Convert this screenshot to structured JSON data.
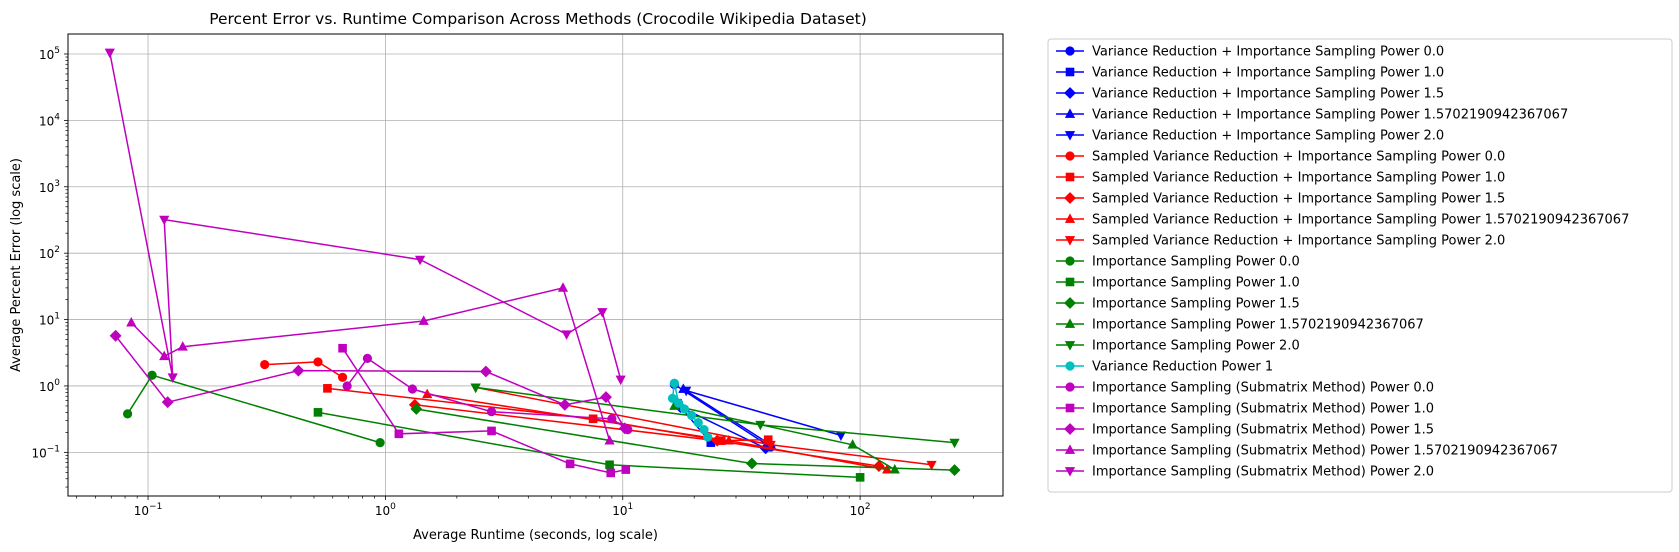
{
  "chart_data": {
    "type": "line",
    "title": "Percent Error vs. Runtime Comparison Across Methods (Crocodile Wikipedia Dataset)",
    "xlabel": "Average Runtime (seconds, log scale)",
    "ylabel": "Average Percent Error (log scale)",
    "xscale": "log",
    "yscale": "log",
    "xlim": [
      0.046,
      400
    ],
    "ylim": [
      0.022,
      200000
    ],
    "grid": true,
    "legend_position": "outside-right",
    "x_ticks": [
      {
        "value": 0.1,
        "base": "10",
        "exp": "−1"
      },
      {
        "value": 1,
        "base": "10",
        "exp": "0"
      },
      {
        "value": 10,
        "base": "10",
        "exp": "1"
      },
      {
        "value": 100,
        "base": "10",
        "exp": "2"
      }
    ],
    "y_ticks": [
      {
        "value": 0.1,
        "base": "10",
        "exp": "−1"
      },
      {
        "value": 1,
        "base": "10",
        "exp": "0"
      },
      {
        "value": 10,
        "base": "10",
        "exp": "1"
      },
      {
        "value": 100,
        "base": "10",
        "exp": "2"
      },
      {
        "value": 1000,
        "base": "10",
        "exp": "3"
      },
      {
        "value": 10000,
        "base": "10",
        "exp": "4"
      },
      {
        "value": 100000,
        "base": "10",
        "exp": "5"
      }
    ],
    "series": [
      {
        "name": "Variance Reduction + Importance Sampling Power 0.0",
        "color": "#0000ff",
        "marker": "circle",
        "x": [
          16.5,
          42
        ],
        "y": [
          1.05,
          0.12
        ]
      },
      {
        "name": "Variance Reduction + Importance Sampling Power 1.0",
        "color": "#0000ff",
        "marker": "square",
        "x": [
          17.0,
          23.5
        ],
        "y": [
          0.55,
          0.14
        ]
      },
      {
        "name": "Variance Reduction + Importance Sampling Power 1.5",
        "color": "#0000ff",
        "marker": "diamond",
        "x": [
          17.5,
          40
        ],
        "y": [
          0.48,
          0.115
        ]
      },
      {
        "name": "Variance Reduction + Importance Sampling Power 1.5702190942367067",
        "color": "#0000ff",
        "marker": "triangle-up",
        "x": [
          18.0,
          42
        ],
        "y": [
          0.9,
          0.13
        ]
      },
      {
        "name": "Variance Reduction + Importance Sampling Power 2.0",
        "color": "#0000ff",
        "marker": "triangle-down",
        "x": [
          18.5,
          83
        ],
        "y": [
          0.85,
          0.18
        ]
      },
      {
        "name": "Sampled Variance Reduction + Importance Sampling Power 0.0",
        "color": "#ff0000",
        "marker": "circle",
        "x": [
          0.31,
          0.52,
          0.66
        ],
        "y": [
          2.1,
          2.3,
          1.35
        ]
      },
      {
        "name": "Sampled Variance Reduction + Importance Sampling Power 1.0",
        "color": "#ff0000",
        "marker": "square",
        "x": [
          0.57,
          7.5,
          26,
          41
        ],
        "y": [
          0.92,
          0.32,
          0.15,
          0.155
        ]
      },
      {
        "name": "Sampled Variance Reduction + Importance Sampling Power 1.5",
        "color": "#ff0000",
        "marker": "diamond",
        "x": [
          1.33,
          25,
          120
        ],
        "y": [
          0.52,
          0.15,
          0.062
        ]
      },
      {
        "name": "Sampled Variance Reduction + Importance Sampling Power 1.5702190942367067",
        "color": "#ff0000",
        "marker": "triangle-up",
        "x": [
          1.5,
          28,
          130
        ],
        "y": [
          0.75,
          0.15,
          0.055
        ]
      },
      {
        "name": "Sampled Variance Reduction + Importance Sampling Power 2.0",
        "color": "#ff0000",
        "marker": "triangle-down",
        "x": [
          2.4,
          42,
          200
        ],
        "y": [
          0.95,
          0.13,
          0.065
        ]
      },
      {
        "name": "Importance Sampling Power 0.0",
        "color": "#008000",
        "marker": "circle",
        "x": [
          0.082,
          0.104,
          0.95
        ],
        "y": [
          0.38,
          1.45,
          0.14
        ]
      },
      {
        "name": "Importance Sampling Power 1.0",
        "color": "#008000",
        "marker": "square",
        "x": [
          0.52,
          8.8,
          100
        ],
        "y": [
          0.4,
          0.065,
          0.042
        ]
      },
      {
        "name": "Importance Sampling Power 1.5",
        "color": "#008000",
        "marker": "diamond",
        "x": [
          1.35,
          35,
          250
        ],
        "y": [
          0.45,
          0.068,
          0.054
        ]
      },
      {
        "name": "Importance Sampling Power 1.5702190942367067",
        "color": "#008000",
        "marker": "triangle-up",
        "x": [
          16.5,
          93,
          140
        ],
        "y": [
          0.5,
          0.13,
          0.055
        ]
      },
      {
        "name": "Importance Sampling Power 2.0",
        "color": "#008000",
        "marker": "triangle-down",
        "x": [
          2.4,
          38,
          250
        ],
        "y": [
          0.95,
          0.26,
          0.14
        ]
      },
      {
        "name": "Variance Reduction Power 1",
        "color": "#00bfbf",
        "marker": "circle",
        "x": [
          16.2,
          16.5,
          17.2,
          18.2,
          19.5,
          20.8,
          22.0,
          22.8
        ],
        "y": [
          0.65,
          1.1,
          0.55,
          0.45,
          0.36,
          0.28,
          0.22,
          0.17
        ]
      },
      {
        "name": "Importance Sampling (Submatrix Method) Power 0.0",
        "color": "#bf00bf",
        "marker": "circle",
        "x": [
          0.69,
          0.84,
          1.3,
          2.8,
          9.0,
          10.5
        ],
        "y": [
          1.0,
          2.6,
          0.9,
          0.41,
          0.32,
          0.22
        ]
      },
      {
        "name": "Importance Sampling (Submatrix Method) Power 1.0",
        "color": "#bf00bf",
        "marker": "square",
        "x": [
          0.66,
          1.14,
          2.8,
          6.0,
          8.9,
          10.3
        ],
        "y": [
          3.7,
          0.19,
          0.21,
          0.067,
          0.049,
          0.055
        ]
      },
      {
        "name": "Importance Sampling (Submatrix Method) Power 1.5",
        "color": "#bf00bf",
        "marker": "diamond",
        "x": [
          0.073,
          0.121,
          0.43,
          2.65,
          5.7,
          8.5,
          10.2
        ],
        "y": [
          5.7,
          0.57,
          1.7,
          1.65,
          0.52,
          0.68,
          0.23
        ]
      },
      {
        "name": "Importance Sampling (Submatrix Method) Power 1.5702190942367067",
        "color": "#bf00bf",
        "marker": "triangle-up",
        "x": [
          0.085,
          0.117,
          0.14,
          1.45,
          5.6,
          8.8
        ],
        "y": [
          9.0,
          2.8,
          3.9,
          9.5,
          30,
          0.15
        ]
      },
      {
        "name": "Importance Sampling (Submatrix Method) Power 2.0",
        "color": "#bf00bf",
        "marker": "triangle-down",
        "x": [
          0.069,
          0.127,
          0.117,
          1.4,
          5.8,
          8.2,
          9.8
        ],
        "y": [
          105000,
          1.35,
          320,
          80,
          6.0,
          13,
          1.25
        ]
      }
    ]
  }
}
